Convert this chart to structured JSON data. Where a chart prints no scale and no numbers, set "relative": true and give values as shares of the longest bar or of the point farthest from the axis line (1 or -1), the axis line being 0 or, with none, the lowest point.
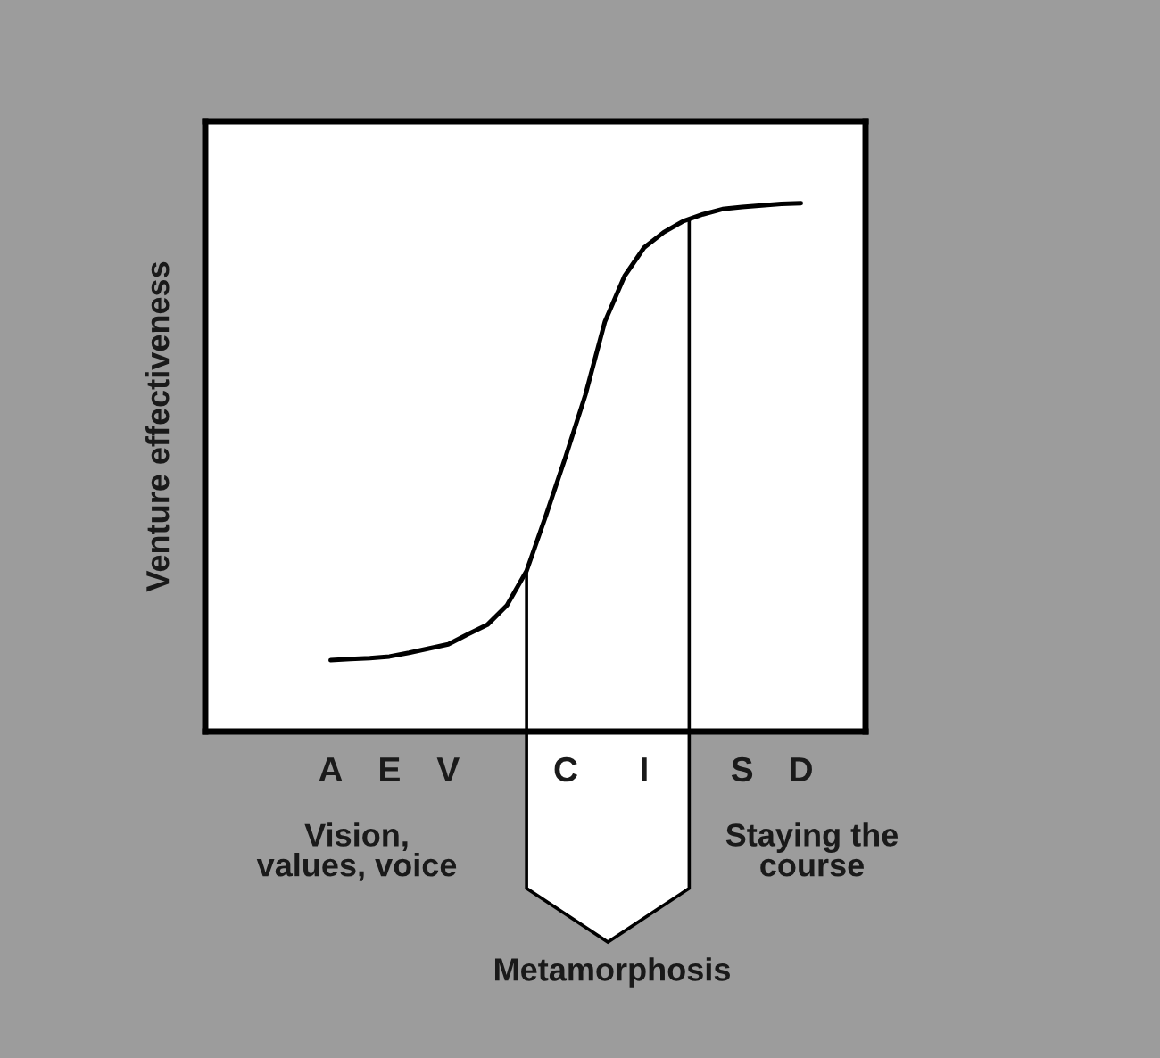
{
  "chart_data": {
    "type": "line",
    "relative": true,
    "ylabel": "Venture effectiveness",
    "categories": [
      "A",
      null,
      null,
      "E",
      null,
      null,
      "V",
      null,
      null,
      null,
      null,
      null,
      "C",
      null,
      null,
      null,
      "I",
      null,
      null,
      null,
      null,
      "S",
      null,
      null,
      "D"
    ],
    "series": [
      {
        "color": "#000000",
        "values": [
          0.135,
          0.137,
          0.139,
          0.142,
          0.149,
          0.157,
          0.165,
          0.184,
          0.202,
          0.239,
          0.304,
          0.41,
          0.521,
          0.637,
          0.776,
          0.862,
          0.916,
          0.945,
          0.966,
          0.979,
          0.989,
          0.993,
          0.996,
          0.999,
          1.0
        ]
      }
    ],
    "annotations": [
      "Vision,\nvalues, voice",
      "Metamorphosis",
      "Staying the\ncourse"
    ],
    "grid": false,
    "legend": false
  }
}
